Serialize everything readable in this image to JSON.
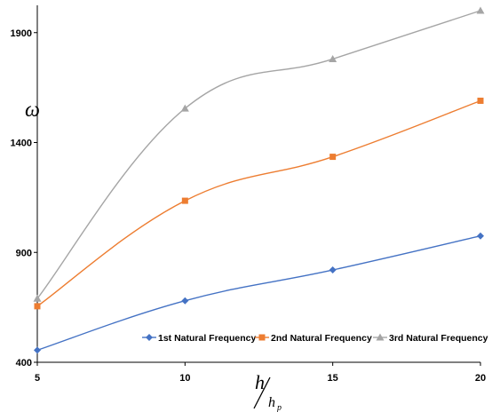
{
  "chart_data": {
    "type": "line",
    "title": "",
    "ylabel": "ω",
    "xlabel": {
      "numerator": "h",
      "denominator": "h",
      "denominator_subscript": "p"
    },
    "x": [
      5,
      10,
      15,
      20
    ],
    "xticks": [
      "5",
      "10",
      "15",
      "20"
    ],
    "yticks": [
      "400",
      "900",
      "1400",
      "1900"
    ],
    "ylim": [
      400,
      2000
    ],
    "xlim": [
      5,
      20
    ],
    "grid": false,
    "legend_position": "bottom-right",
    "series": [
      {
        "name": "1st Natural Frequency",
        "values": [
          455,
          680,
          820,
          975
        ],
        "color": "#4472C4",
        "marker": "diamond"
      },
      {
        "name": "2nd Natural Frequency",
        "values": [
          655,
          1135,
          1335,
          1590
        ],
        "color": "#ED7D31",
        "marker": "square"
      },
      {
        "name": "3rd Natural Frequency",
        "values": [
          690,
          1555,
          1780,
          2000
        ],
        "color": "#A5A5A5",
        "marker": "triangle"
      }
    ]
  }
}
